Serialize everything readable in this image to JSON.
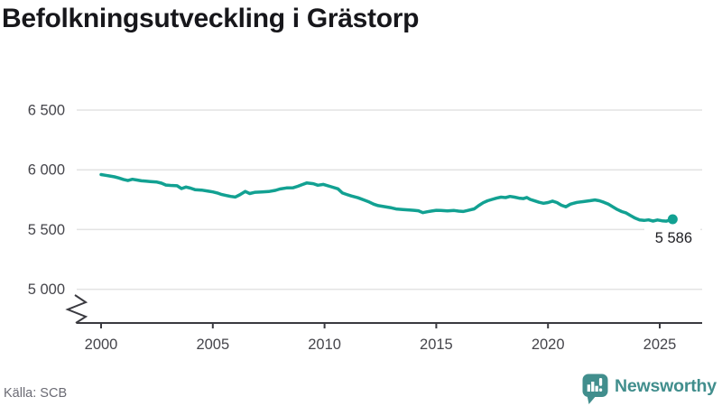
{
  "title": "Befolkningsutveckling i Grästorp",
  "source": {
    "text": "Källa: SCB"
  },
  "branding": {
    "name": "Newsworthy",
    "icon": "bar-chart-speech-bubble-icon"
  },
  "colors": {
    "line": "#12a192",
    "logo": "#418e8d",
    "grid": "#e3e3e3",
    "axis": "#3a3a40",
    "tick": "#45454b",
    "label": "#202025",
    "title": "#17171b",
    "source": "#6b6b74"
  },
  "chart_data": {
    "type": "line",
    "title": "Befolkningsutveckling i Grästorp",
    "x_ticks": [
      2000,
      2005,
      2010,
      2015,
      2020,
      2025
    ],
    "y_ticks": [
      6500,
      6000,
      5500,
      5000
    ],
    "y_tick_labels": [
      "6 500",
      "6 000",
      "5 500",
      "5 000"
    ],
    "xlim": [
      1999,
      2027
    ],
    "ylim": [
      4900,
      6650
    ],
    "y_axis_break": true,
    "grid": "horizontal",
    "legend": "none",
    "last_point_label": "5 586",
    "last_value": 5586,
    "points": [
      [
        2000.0,
        5960
      ],
      [
        2000.2,
        5954
      ],
      [
        2000.4,
        5948
      ],
      [
        2000.6,
        5941
      ],
      [
        2000.8,
        5931
      ],
      [
        2001.0,
        5919
      ],
      [
        2001.2,
        5910
      ],
      [
        2001.4,
        5921
      ],
      [
        2001.6,
        5915
      ],
      [
        2001.8,
        5908
      ],
      [
        2002.0,
        5905
      ],
      [
        2002.2,
        5902
      ],
      [
        2002.5,
        5897
      ],
      [
        2002.7,
        5888
      ],
      [
        2002.9,
        5872
      ],
      [
        2003.1,
        5869
      ],
      [
        2003.4,
        5866
      ],
      [
        2003.6,
        5843
      ],
      [
        2003.8,
        5856
      ],
      [
        2004.0,
        5847
      ],
      [
        2004.2,
        5834
      ],
      [
        2004.5,
        5830
      ],
      [
        2004.8,
        5821
      ],
      [
        2005.0,
        5815
      ],
      [
        2005.2,
        5806
      ],
      [
        2005.4,
        5793
      ],
      [
        2005.6,
        5785
      ],
      [
        2005.8,
        5777
      ],
      [
        2006.0,
        5772
      ],
      [
        2006.2,
        5790
      ],
      [
        2006.45,
        5819
      ],
      [
        2006.65,
        5801
      ],
      [
        2006.9,
        5812
      ],
      [
        2007.2,
        5815
      ],
      [
        2007.5,
        5818
      ],
      [
        2007.8,
        5828
      ],
      [
        2008.0,
        5839
      ],
      [
        2008.3,
        5848
      ],
      [
        2008.6,
        5850
      ],
      [
        2008.8,
        5862
      ],
      [
        2009.0,
        5876
      ],
      [
        2009.2,
        5890
      ],
      [
        2009.5,
        5884
      ],
      [
        2009.7,
        5871
      ],
      [
        2009.95,
        5878
      ],
      [
        2010.3,
        5858
      ],
      [
        2010.6,
        5841
      ],
      [
        2010.8,
        5806
      ],
      [
        2011.0,
        5793
      ],
      [
        2011.2,
        5781
      ],
      [
        2011.5,
        5766
      ],
      [
        2011.8,
        5745
      ],
      [
        2012.0,
        5730
      ],
      [
        2012.2,
        5712
      ],
      [
        2012.4,
        5700
      ],
      [
        2012.7,
        5691
      ],
      [
        2013.0,
        5681
      ],
      [
        2013.2,
        5672
      ],
      [
        2013.5,
        5668
      ],
      [
        2013.8,
        5663
      ],
      [
        2014.0,
        5661
      ],
      [
        2014.2,
        5657
      ],
      [
        2014.4,
        5641
      ],
      [
        2014.6,
        5649
      ],
      [
        2014.8,
        5655
      ],
      [
        2015.0,
        5661
      ],
      [
        2015.2,
        5659
      ],
      [
        2015.5,
        5656
      ],
      [
        2015.8,
        5659
      ],
      [
        2016.0,
        5654
      ],
      [
        2016.2,
        5651
      ],
      [
        2016.4,
        5659
      ],
      [
        2016.7,
        5673
      ],
      [
        2016.9,
        5700
      ],
      [
        2017.1,
        5724
      ],
      [
        2017.3,
        5741
      ],
      [
        2017.5,
        5752
      ],
      [
        2017.7,
        5763
      ],
      [
        2017.9,
        5771
      ],
      [
        2018.1,
        5767
      ],
      [
        2018.3,
        5777
      ],
      [
        2018.5,
        5771
      ],
      [
        2018.7,
        5763
      ],
      [
        2018.9,
        5759
      ],
      [
        2019.05,
        5768
      ],
      [
        2019.2,
        5752
      ],
      [
        2019.4,
        5740
      ],
      [
        2019.6,
        5728
      ],
      [
        2019.8,
        5720
      ],
      [
        2020.0,
        5726
      ],
      [
        2020.2,
        5738
      ],
      [
        2020.4,
        5726
      ],
      [
        2020.6,
        5703
      ],
      [
        2020.8,
        5690
      ],
      [
        2021.0,
        5712
      ],
      [
        2021.3,
        5727
      ],
      [
        2021.6,
        5734
      ],
      [
        2021.9,
        5742
      ],
      [
        2022.1,
        5748
      ],
      [
        2022.3,
        5741
      ],
      [
        2022.5,
        5728
      ],
      [
        2022.7,
        5712
      ],
      [
        2022.9,
        5690
      ],
      [
        2023.1,
        5668
      ],
      [
        2023.3,
        5650
      ],
      [
        2023.5,
        5638
      ],
      [
        2023.7,
        5616
      ],
      [
        2023.9,
        5595
      ],
      [
        2024.1,
        5580
      ],
      [
        2024.3,
        5576
      ],
      [
        2024.5,
        5581
      ],
      [
        2024.7,
        5571
      ],
      [
        2024.9,
        5580
      ],
      [
        2025.1,
        5573
      ],
      [
        2025.3,
        5570
      ],
      [
        2025.58,
        5586
      ]
    ]
  }
}
